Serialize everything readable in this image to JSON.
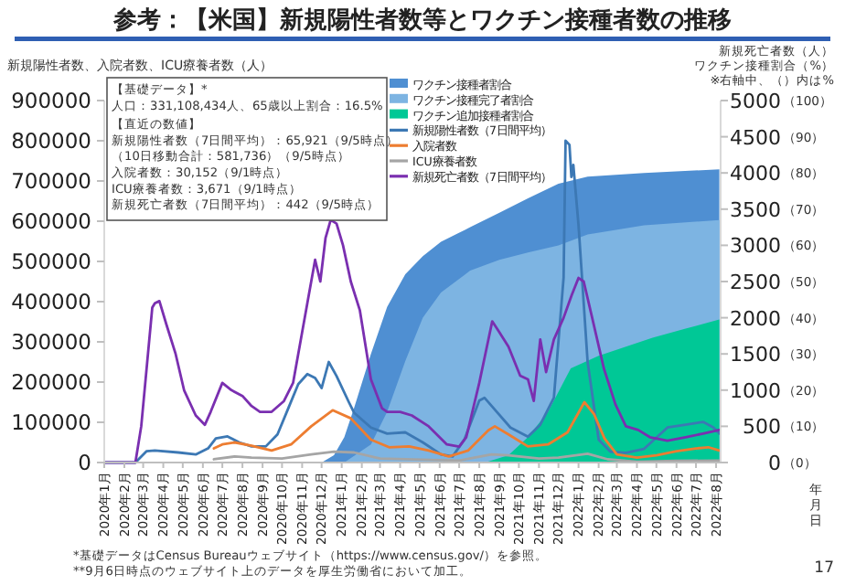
{
  "chart_data": {
    "type": "line",
    "title": "参考：【米国】新規陽性者数等とワクチン接種者数の推移",
    "ylabel": "新規陽性者数、入院者数、ICU療養者数（人）",
    "y2label": "新規死亡者数（人）",
    "y3label": "ワクチン接種割合（%）",
    "xlabel": "年月日",
    "xlim": [
      "2020-01-01",
      "2022-08-08"
    ],
    "xticks": [
      {
        "value": "2020-01-01",
        "label": "2020年1月"
      },
      {
        "value": "2020-02-01",
        "label": "2020年2月"
      },
      {
        "value": "2020-03-01",
        "label": "2020年3月"
      },
      {
        "value": "2020-04-01",
        "label": "2020年4月"
      },
      {
        "value": "2020-05-01",
        "label": "2020年5月"
      },
      {
        "value": "2020-06-01",
        "label": "2020年6月"
      },
      {
        "value": "2020-07-01",
        "label": "2020年7月"
      },
      {
        "value": "2020-08-01",
        "label": "2020年8月"
      },
      {
        "value": "2020-09-01",
        "label": "2020年9月"
      },
      {
        "value": "2020-10-01",
        "label": "2020年10月"
      },
      {
        "value": "2020-11-01",
        "label": "2020年11月"
      },
      {
        "value": "2020-12-01",
        "label": "2020年12月"
      },
      {
        "value": "2021-01-01",
        "label": "2021年1月"
      },
      {
        "value": "2021-02-01",
        "label": "2021年2月"
      },
      {
        "value": "2021-03-01",
        "label": "2021年3月"
      },
      {
        "value": "2021-04-01",
        "label": "2021年4月"
      },
      {
        "value": "2021-05-01",
        "label": "2021年5月"
      },
      {
        "value": "2021-06-01",
        "label": "2021年6月"
      },
      {
        "value": "2021-07-01",
        "label": "2021年7月"
      },
      {
        "value": "2021-08-01",
        "label": "2021年8月"
      },
      {
        "value": "2021-09-01",
        "label": "2021年9月"
      },
      {
        "value": "2021-10-01",
        "label": "2021年10月"
      },
      {
        "value": "2021-11-01",
        "label": "2021年11月"
      },
      {
        "value": "2021-12-01",
        "label": "2021年12月"
      },
      {
        "value": "2022-01-01",
        "label": "2022年1月"
      },
      {
        "value": "2022-02-01",
        "label": "2022年2月"
      },
      {
        "value": "2022-03-01",
        "label": "2022年3月"
      },
      {
        "value": "2022-04-01",
        "label": "2022年4月"
      },
      {
        "value": "2022-05-01",
        "label": "2022年5月"
      },
      {
        "value": "2022-06-01",
        "label": "2022年6月"
      },
      {
        "value": "2022-07-01",
        "label": "2022年7月"
      },
      {
        "value": "2022-08-01",
        "label": "2022年8月"
      }
    ],
    "ylim": [
      0,
      900000
    ],
    "yticks": [
      0,
      100000,
      200000,
      300000,
      400000,
      500000,
      600000,
      700000,
      800000,
      900000
    ],
    "y2lim": [
      0,
      5000
    ],
    "y2ticks": [
      0,
      500,
      1000,
      1500,
      2000,
      2500,
      3000,
      3500,
      4000,
      4500,
      5000
    ],
    "y3lim": [
      0,
      100
    ],
    "y3ticks": [
      {
        "value": 0,
        "label": "（0）"
      },
      {
        "value": 10,
        "label": "（10）"
      },
      {
        "value": 20,
        "label": "（20）"
      },
      {
        "value": 30,
        "label": "（30）"
      },
      {
        "value": 40,
        "label": "（40）"
      },
      {
        "value": 50,
        "label": "（50）"
      },
      {
        "value": 60,
        "label": "（60）"
      },
      {
        "value": 70,
        "label": "（70）"
      },
      {
        "value": 80,
        "label": "（80）"
      },
      {
        "value": 90,
        "label": "（90）"
      },
      {
        "value": 100,
        "label": "（100）"
      }
    ],
    "legend": "top",
    "grid": false,
    "series": [
      {
        "name": "ワクチン接種者割合",
        "type": "area",
        "axis": "y3",
        "color": "#4f8fd2",
        "x": [
          "2020-12-01",
          "2020-12-20",
          "2021-01-05",
          "2021-01-20",
          "2021-02-15",
          "2021-03-12",
          "2021-04-09",
          "2021-05-06",
          "2021-06-03",
          "2021-07-18",
          "2021-09-01",
          "2021-10-15",
          "2021-12-01",
          "2022-01-15",
          "2022-04-12",
          "2022-08-06"
        ],
        "values": [
          0,
          2,
          7,
          15,
          30,
          43,
          52,
          57,
          61,
          65,
          69,
          73,
          77,
          79,
          80,
          81
        ]
      },
      {
        "name": "ワクチン接種完了者割合",
        "type": "area",
        "axis": "y3",
        "color": "#7db4e2",
        "x": [
          "2021-01-05",
          "2021-02-15",
          "2021-03-12",
          "2021-04-09",
          "2021-05-06",
          "2021-06-03",
          "2021-07-18",
          "2021-09-01",
          "2021-10-15",
          "2021-12-01",
          "2022-01-15",
          "2022-04-12",
          "2022-08-06"
        ],
        "values": [
          0,
          5,
          14,
          28,
          40,
          47,
          53,
          56,
          58,
          60,
          63,
          65.5,
          67
        ]
      },
      {
        "name": "ワクチン追加接種者割合",
        "type": "area",
        "axis": "y3",
        "color": "#00c896",
        "x": [
          "2021-08-10",
          "2021-09-15",
          "2021-10-15",
          "2021-11-15",
          "2021-12-20",
          "2022-02-01",
          "2022-03-15",
          "2022-04-25",
          "2022-06-15",
          "2022-08-06"
        ],
        "values": [
          0,
          2,
          7,
          14,
          26,
          29.5,
          32,
          34.5,
          37,
          39.5
        ]
      },
      {
        "name": "新規陽性者数（7日間平均）",
        "color": "#3c78b4",
        "x": [
          "2020-01-01",
          "2020-02-18",
          "2020-03-06",
          "2020-03-19",
          "2020-04-24",
          "2020-05-21",
          "2020-06-09",
          "2020-06-21",
          "2020-07-09",
          "2020-07-27",
          "2020-08-15",
          "2020-09-06",
          "2020-09-24",
          "2020-10-12",
          "2020-10-26",
          "2020-11-09",
          "2020-11-21",
          "2020-12-01",
          "2020-12-12",
          "2020-12-24",
          "2021-01-12",
          "2021-01-20",
          "2021-02-15",
          "2021-03-12",
          "2021-04-09",
          "2021-05-06",
          "2021-06-03",
          "2021-06-21",
          "2021-07-09",
          "2021-08-01",
          "2021-08-09",
          "2021-08-21",
          "2021-09-18",
          "2021-10-15",
          "2021-11-03",
          "2021-11-24",
          "2021-12-09",
          "2021-12-12",
          "2021-12-18",
          "2021-12-21",
          "2021-12-24",
          "2022-01-01",
          "2022-01-15",
          "2022-02-01",
          "2022-02-19",
          "2022-03-15",
          "2022-04-12",
          "2022-05-18",
          "2022-06-15",
          "2022-07-12",
          "2022-07-28",
          "2022-08-06"
        ],
        "values": [
          0,
          0,
          28000,
          30000,
          25000,
          20000,
          35000,
          60000,
          65000,
          50000,
          40000,
          40000,
          70000,
          140000,
          195000,
          220000,
          210000,
          185000,
          250000,
          215000,
          150000,
          124000,
          87000,
          72000,
          75000,
          50000,
          20000,
          15000,
          57000,
          154000,
          161000,
          139000,
          87000,
          64000,
          94000,
          161000,
          460000,
          800000,
          790000,
          710000,
          740000,
          590000,
          250000,
          57000,
          27000,
          24000,
          34000,
          87000,
          94000,
          101000,
          87000,
          72000
        ]
      },
      {
        "name": "入院者数",
        "color": "#ed7d31",
        "x": [
          "2020-06-18",
          "2020-07-01",
          "2020-07-20",
          "2020-08-15",
          "2020-09-15",
          "2020-10-15",
          "2020-11-15",
          "2020-12-18",
          "2021-01-15",
          "2021-02-15",
          "2021-03-15",
          "2021-04-15",
          "2021-05-15",
          "2021-06-15",
          "2021-07-15",
          "2021-08-15",
          "2021-08-25",
          "2021-09-15",
          "2021-10-15",
          "2021-11-15",
          "2021-12-15",
          "2022-01-10",
          "2022-01-25",
          "2022-02-10",
          "2022-03-01",
          "2022-04-01",
          "2022-05-01",
          "2022-06-01",
          "2022-07-01",
          "2022-07-20",
          "2022-08-06"
        ],
        "values": [
          35000,
          45000,
          50000,
          42000,
          30000,
          45000,
          90000,
          130000,
          110000,
          57000,
          38000,
          40000,
          30000,
          15000,
          30000,
          80000,
          90000,
          70000,
          40000,
          45000,
          75000,
          150000,
          120000,
          60000,
          20000,
          12000,
          18000,
          28000,
          35000,
          38000,
          30000
        ]
      },
      {
        "name": "ICU療養者数",
        "color": "#a5a5a5",
        "x": [
          "2020-06-18",
          "2020-07-20",
          "2020-08-15",
          "2020-10-01",
          "2020-11-15",
          "2020-12-20",
          "2021-01-20",
          "2021-03-01",
          "2021-06-01",
          "2021-07-01",
          "2021-08-20",
          "2021-09-15",
          "2021-11-01",
          "2021-12-01",
          "2022-01-15",
          "2022-02-15",
          "2022-04-01",
          "2022-06-01",
          "2022-08-06"
        ],
        "values": [
          8000,
          15000,
          12000,
          10000,
          20000,
          27000,
          25000,
          10000,
          6000,
          5000,
          20000,
          18000,
          10000,
          12000,
          22000,
          8000,
          2000,
          4000,
          5000
        ]
      },
      {
        "name": "新規死亡者数（7日間平均）",
        "axis": "y2",
        "color": "#7a2fb0",
        "x": [
          "2020-01-01",
          "2020-02-18",
          "2020-02-27",
          "2020-03-15",
          "2020-03-19",
          "2020-03-26",
          "2020-04-06",
          "2020-04-20",
          "2020-05-03",
          "2020-05-21",
          "2020-06-04",
          "2020-06-13",
          "2020-07-01",
          "2020-07-15",
          "2020-08-01",
          "2020-08-15",
          "2020-08-28",
          "2020-09-15",
          "2020-10-04",
          "2020-10-18",
          "2020-11-01",
          "2020-11-09",
          "2020-11-21",
          "2020-11-29",
          "2020-12-07",
          "2020-12-15",
          "2020-12-24",
          "2021-01-03",
          "2021-01-15",
          "2021-01-29",
          "2021-02-15",
          "2021-03-04",
          "2021-03-12",
          "2021-04-01",
          "2021-04-19",
          "2021-05-15",
          "2021-06-12",
          "2021-07-01",
          "2021-07-12",
          "2021-08-01",
          "2021-08-21",
          "2021-09-01",
          "2021-09-15",
          "2021-10-03",
          "2021-10-15",
          "2021-10-24",
          "2021-11-03",
          "2021-11-12",
          "2021-11-24",
          "2021-12-09",
          "2021-12-21",
          "2022-01-01",
          "2022-01-09",
          "2022-01-22",
          "2022-02-09",
          "2022-02-27",
          "2022-03-15",
          "2022-04-03",
          "2022-04-21",
          "2022-05-18",
          "2022-06-15",
          "2022-07-12",
          "2022-08-06"
        ],
        "values": [
          0,
          0,
          500,
          2140,
          2200,
          2230,
          1900,
          1500,
          1000,
          650,
          520,
          700,
          1100,
          1000,
          920,
          780,
          700,
          700,
          850,
          1100,
          1800,
          2200,
          2800,
          2500,
          3100,
          3350,
          3300,
          3000,
          2500,
          2100,
          1150,
          750,
          700,
          700,
          650,
          500,
          250,
          220,
          350,
          1100,
          1950,
          1800,
          1600,
          1200,
          1150,
          850,
          1700,
          1250,
          1700,
          2000,
          2300,
          2550,
          2500,
          2000,
          1300,
          800,
          500,
          450,
          350,
          300,
          350,
          400,
          450
        ]
      }
    ],
    "annotations": [
      "【基礎データ】*",
      "人口：331,108,434人、65歳以上割合：16.5%",
      "【直近の数値】",
      "新規陽性者数（7日間平均）：65,921（9/5時点）",
      "（10日移動合計：581,736）（9/5時点）",
      "入院者数：30,152（9/1時点）",
      "ICU療養者数：3,671（9/1時点）",
      "新規死亡者数（7日間平均）：442（9/5時点）",
      "※右軸中、（）内は%",
      "*基礎データはCensus Bureauウェブサイト（https://www.census.gov/）を参照。",
      "**9月6日時点のウェブサイト上のデータを厚生労働省において加工。",
      "17"
    ]
  }
}
